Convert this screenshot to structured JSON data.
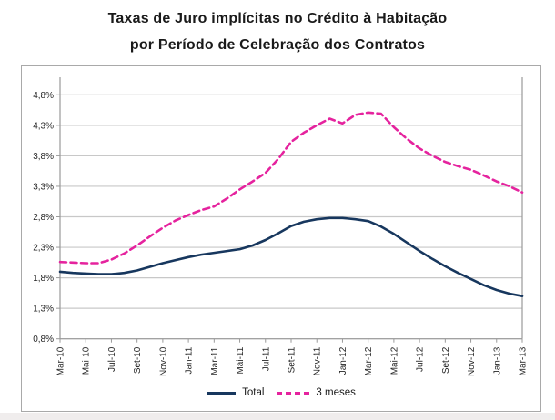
{
  "title": {
    "line1": "Taxas de Juro implícitas no Crédito à Habitação",
    "line2": "por Período de Celebração dos Contratos"
  },
  "colors": {
    "total_line": "#17375E",
    "tres_meses_line": "#E5239E",
    "gridline": "#c8c8c8",
    "axis": "#9a9a9a",
    "frame_border": "#a9a9a9",
    "tick_text": "#262626",
    "title_text": "#1a1a1a"
  },
  "chart_data": {
    "type": "line",
    "title": "Taxas de Juro implícitas no Crédito à Habitação por Período de Celebração dos Contratos",
    "xlabel": "",
    "ylabel": "",
    "ylim": [
      0.8,
      4.8
    ],
    "y_step": 0.5,
    "y_tick_labels": [
      "4,8%",
      "4,3%",
      "3,8%",
      "3,3%",
      "2,8%",
      "2,3%",
      "1,8%",
      "1,3%",
      "0,8%"
    ],
    "x_tick_labels": [
      "Mar-10",
      "Mai-10",
      "Jul-10",
      "Set-10",
      "Nov-10",
      "Jan-11",
      "Mar-11",
      "Mai-11",
      "Jul-11",
      "Set-11",
      "Nov-11",
      "Jan-12",
      "Mar-12",
      "Mai-12",
      "Jul-12",
      "Set-12",
      "Nov-12",
      "Jan-13",
      "Mar-13"
    ],
    "x": [
      "Mar-10",
      "Abr-10",
      "Mai-10",
      "Jun-10",
      "Jul-10",
      "Ago-10",
      "Set-10",
      "Out-10",
      "Nov-10",
      "Dez-10",
      "Jan-11",
      "Fev-11",
      "Mar-11",
      "Abr-11",
      "Mai-11",
      "Jun-11",
      "Jul-11",
      "Ago-11",
      "Set-11",
      "Out-11",
      "Nov-11",
      "Dez-11",
      "Jan-12",
      "Fev-12",
      "Mar-12",
      "Abr-12",
      "Mai-12",
      "Jun-12",
      "Jul-12",
      "Ago-12",
      "Set-12",
      "Out-12",
      "Nov-12",
      "Dez-12",
      "Jan-13",
      "Fev-13",
      "Mar-13"
    ],
    "grid": "horizontal",
    "legend_position": "bottom",
    "series": [
      {
        "name": "Total",
        "style": "solid",
        "color": "#17375E",
        "values": [
          1.9,
          1.88,
          1.87,
          1.86,
          1.86,
          1.88,
          1.92,
          1.98,
          2.04,
          2.09,
          2.14,
          2.18,
          2.21,
          2.24,
          2.27,
          2.33,
          2.42,
          2.53,
          2.65,
          2.72,
          2.76,
          2.78,
          2.78,
          2.76,
          2.73,
          2.64,
          2.52,
          2.38,
          2.24,
          2.11,
          1.99,
          1.88,
          1.78,
          1.68,
          1.6,
          1.54,
          1.5
        ]
      },
      {
        "name": "3 meses",
        "style": "dashed",
        "color": "#E5239E",
        "values": [
          2.06,
          2.05,
          2.04,
          2.04,
          2.1,
          2.2,
          2.33,
          2.48,
          2.62,
          2.74,
          2.83,
          2.91,
          2.97,
          3.1,
          3.25,
          3.38,
          3.52,
          3.75,
          4.03,
          4.18,
          4.3,
          4.41,
          4.33,
          4.47,
          4.51,
          4.49,
          4.27,
          4.08,
          3.92,
          3.8,
          3.7,
          3.63,
          3.57,
          3.48,
          3.38,
          3.3,
          3.2
        ]
      }
    ]
  }
}
